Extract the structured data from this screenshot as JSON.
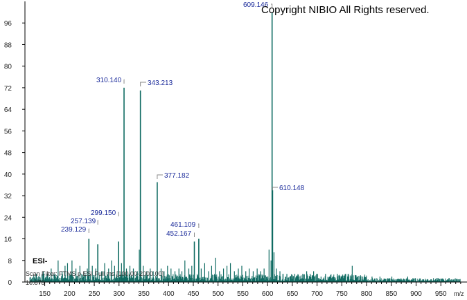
{
  "copyright": "Copyright NIBIO All Rights reserved.",
  "chart_data": {
    "type": "bar",
    "title": "",
    "xlabel": "m/z",
    "ylabel": "",
    "xlim": [
      110,
      1000
    ],
    "ylim": [
      0,
      104
    ],
    "x_ticks": [
      150,
      200,
      250,
      300,
      350,
      400,
      450,
      500,
      550,
      600,
      650,
      700,
      750,
      800,
      850,
      900,
      950
    ],
    "y_ticks": [
      0,
      8,
      16,
      24,
      32,
      40,
      48,
      56,
      64,
      72,
      80,
      88,
      96
    ],
    "grid": false,
    "ionization_mode": "ESI-",
    "scan_filter": "Scan Filter: FTMS p ESI Full ms [100.00-2000.00]",
    "base_intensity_label": "10.878",
    "labeled_peaks": [
      {
        "mz": 239.129,
        "label": "239.129",
        "intensity": 16
      },
      {
        "mz": 257.139,
        "label": "257.139",
        "intensity": 14
      },
      {
        "mz": 299.15,
        "label": "299.150",
        "intensity": 15
      },
      {
        "mz": 310.14,
        "label": "310.140",
        "intensity": 72
      },
      {
        "mz": 343.213,
        "label": "343.213",
        "intensity": 71
      },
      {
        "mz": 377.182,
        "label": "377.182",
        "intensity": 37
      },
      {
        "mz": 452.167,
        "label": "452.167",
        "intensity": 15
      },
      {
        "mz": 461.109,
        "label": "461.109",
        "intensity": 16
      },
      {
        "mz": 609.146,
        "label": "609.146",
        "intensity": 100
      },
      {
        "mz": 610.148,
        "label": "610.148",
        "intensity": 34
      }
    ],
    "unlabeled_peaks": [
      {
        "mz": 133,
        "intensity": 3
      },
      {
        "mz": 140,
        "intensity": 2
      },
      {
        "mz": 147,
        "intensity": 4
      },
      {
        "mz": 155,
        "intensity": 3
      },
      {
        "mz": 163,
        "intensity": 5
      },
      {
        "mz": 171,
        "intensity": 3
      },
      {
        "mz": 177,
        "intensity": 8
      },
      {
        "mz": 185,
        "intensity": 4
      },
      {
        "mz": 191,
        "intensity": 6
      },
      {
        "mz": 196,
        "intensity": 7
      },
      {
        "mz": 205,
        "intensity": 8
      },
      {
        "mz": 213,
        "intensity": 5
      },
      {
        "mz": 221,
        "intensity": 6
      },
      {
        "mz": 229,
        "intensity": 4
      },
      {
        "mz": 236,
        "intensity": 5
      },
      {
        "mz": 246,
        "intensity": 6
      },
      {
        "mz": 253,
        "intensity": 5
      },
      {
        "mz": 265,
        "intensity": 4
      },
      {
        "mz": 271,
        "intensity": 7
      },
      {
        "mz": 279,
        "intensity": 5
      },
      {
        "mz": 285,
        "intensity": 8
      },
      {
        "mz": 291,
        "intensity": 6
      },
      {
        "mz": 305,
        "intensity": 7
      },
      {
        "mz": 315,
        "intensity": 5
      },
      {
        "mz": 322,
        "intensity": 6
      },
      {
        "mz": 329,
        "intensity": 5
      },
      {
        "mz": 337,
        "intensity": 4
      },
      {
        "mz": 341,
        "intensity": 12
      },
      {
        "mz": 349,
        "intensity": 6
      },
      {
        "mz": 356,
        "intensity": 4
      },
      {
        "mz": 363,
        "intensity": 5
      },
      {
        "mz": 369,
        "intensity": 4
      },
      {
        "mz": 385,
        "intensity": 5
      },
      {
        "mz": 391,
        "intensity": 4
      },
      {
        "mz": 398,
        "intensity": 6
      },
      {
        "mz": 405,
        "intensity": 5
      },
      {
        "mz": 413,
        "intensity": 4
      },
      {
        "mz": 421,
        "intensity": 5
      },
      {
        "mz": 427,
        "intensity": 4
      },
      {
        "mz": 433,
        "intensity": 8
      },
      {
        "mz": 441,
        "intensity": 5
      },
      {
        "mz": 447,
        "intensity": 6
      },
      {
        "mz": 466,
        "intensity": 5
      },
      {
        "mz": 473,
        "intensity": 7
      },
      {
        "mz": 481,
        "intensity": 4
      },
      {
        "mz": 487,
        "intensity": 6
      },
      {
        "mz": 495,
        "intensity": 9
      },
      {
        "mz": 503,
        "intensity": 4
      },
      {
        "mz": 511,
        "intensity": 5
      },
      {
        "mz": 518,
        "intensity": 6
      },
      {
        "mz": 525,
        "intensity": 7
      },
      {
        "mz": 533,
        "intensity": 4
      },
      {
        "mz": 541,
        "intensity": 5
      },
      {
        "mz": 548,
        "intensity": 6
      },
      {
        "mz": 556,
        "intensity": 4
      },
      {
        "mz": 563,
        "intensity": 5
      },
      {
        "mz": 571,
        "intensity": 4
      },
      {
        "mz": 579,
        "intensity": 5
      },
      {
        "mz": 586,
        "intensity": 4
      },
      {
        "mz": 593,
        "intensity": 5
      },
      {
        "mz": 603,
        "intensity": 12
      },
      {
        "mz": 607,
        "intensity": 8
      },
      {
        "mz": 613,
        "intensity": 11
      },
      {
        "mz": 618,
        "intensity": 5
      },
      {
        "mz": 625,
        "intensity": 4
      },
      {
        "mz": 631,
        "intensity": 3
      },
      {
        "mz": 639,
        "intensity": 3
      },
      {
        "mz": 647,
        "intensity": 2
      },
      {
        "mz": 655,
        "intensity": 3
      },
      {
        "mz": 663,
        "intensity": 2
      },
      {
        "mz": 671,
        "intensity": 3
      },
      {
        "mz": 679,
        "intensity": 4
      },
      {
        "mz": 686,
        "intensity": 3
      },
      {
        "mz": 693,
        "intensity": 4
      },
      {
        "mz": 701,
        "intensity": 3
      },
      {
        "mz": 708,
        "intensity": 2
      },
      {
        "mz": 717,
        "intensity": 3
      },
      {
        "mz": 725,
        "intensity": 2
      },
      {
        "mz": 733,
        "intensity": 2
      },
      {
        "mz": 741,
        "intensity": 3
      },
      {
        "mz": 749,
        "intensity": 2
      },
      {
        "mz": 757,
        "intensity": 3
      },
      {
        "mz": 764,
        "intensity": 2
      },
      {
        "mz": 771,
        "intensity": 6
      },
      {
        "mz": 779,
        "intensity": 2
      },
      {
        "mz": 787,
        "intensity": 2
      },
      {
        "mz": 795,
        "intensity": 2
      },
      {
        "mz": 803,
        "intensity": 1
      },
      {
        "mz": 811,
        "intensity": 2
      },
      {
        "mz": 819,
        "intensity": 1
      },
      {
        "mz": 827,
        "intensity": 2
      },
      {
        "mz": 835,
        "intensity": 1
      },
      {
        "mz": 843,
        "intensity": 1
      },
      {
        "mz": 851,
        "intensity": 2
      },
      {
        "mz": 859,
        "intensity": 1
      },
      {
        "mz": 867,
        "intensity": 1
      },
      {
        "mz": 875,
        "intensity": 1
      },
      {
        "mz": 883,
        "intensity": 2
      },
      {
        "mz": 891,
        "intensity": 1
      },
      {
        "mz": 899,
        "intensity": 1
      },
      {
        "mz": 907,
        "intensity": 1
      },
      {
        "mz": 915,
        "intensity": 1
      },
      {
        "mz": 923,
        "intensity": 1
      },
      {
        "mz": 931,
        "intensity": 1
      },
      {
        "mz": 939,
        "intensity": 1
      },
      {
        "mz": 947,
        "intensity": 1
      },
      {
        "mz": 955,
        "intensity": 1
      },
      {
        "mz": 963,
        "intensity": 1
      },
      {
        "mz": 971,
        "intensity": 1
      },
      {
        "mz": 979,
        "intensity": 1
      },
      {
        "mz": 987,
        "intensity": 1
      }
    ],
    "colors": {
      "peak": "#0f6b62",
      "label_text": "#1a2a9a",
      "label_bracket": "#8a8a8a",
      "axis": "#000000"
    }
  }
}
